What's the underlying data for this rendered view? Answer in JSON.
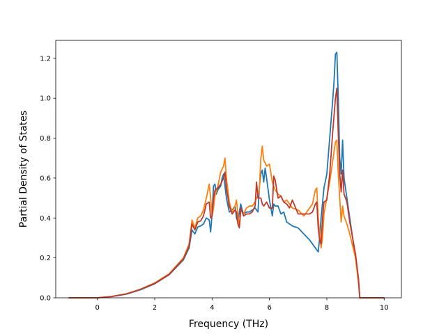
{
  "chart_data": {
    "type": "line",
    "xlabel": "Frequency (THz)",
    "ylabel": "Partial Density of States",
    "xlim": [
      -1.45,
      10.6
    ],
    "ylim": [
      0.0,
      1.29
    ],
    "x_ticks": [
      "0",
      "2",
      "4",
      "6",
      "8",
      "10"
    ],
    "x_tick_values": [
      0,
      2,
      4,
      6,
      8,
      10
    ],
    "y_ticks": [
      "0.0",
      "0.2",
      "0.4",
      "0.6",
      "0.8",
      "1.0",
      "1.2"
    ],
    "y_tick_values": [
      0.0,
      0.2,
      0.4,
      0.6,
      0.8,
      1.0,
      1.2
    ],
    "grid": false,
    "series": [
      {
        "color": "#1f77b4",
        "points": [
          [
            -1.0,
            0.0
          ],
          [
            0.0,
            0.0
          ],
          [
            0.5,
            0.006
          ],
          [
            1.0,
            0.018
          ],
          [
            1.5,
            0.04
          ],
          [
            2.0,
            0.07
          ],
          [
            2.5,
            0.115
          ],
          [
            3.0,
            0.19
          ],
          [
            3.2,
            0.25
          ],
          [
            3.3,
            0.34
          ],
          [
            3.4,
            0.32
          ],
          [
            3.5,
            0.355
          ],
          [
            3.6,
            0.36
          ],
          [
            3.7,
            0.37
          ],
          [
            3.8,
            0.4
          ],
          [
            3.9,
            0.39
          ],
          [
            3.95,
            0.33
          ],
          [
            4.0,
            0.42
          ],
          [
            4.05,
            0.56
          ],
          [
            4.1,
            0.57
          ],
          [
            4.15,
            0.52
          ],
          [
            4.2,
            0.54
          ],
          [
            4.3,
            0.56
          ],
          [
            4.35,
            0.6
          ],
          [
            4.4,
            0.62
          ],
          [
            4.45,
            0.56
          ],
          [
            4.5,
            0.5
          ],
          [
            4.6,
            0.43
          ],
          [
            4.7,
            0.44
          ],
          [
            4.8,
            0.46
          ],
          [
            4.85,
            0.4
          ],
          [
            4.9,
            0.38
          ],
          [
            4.95,
            0.43
          ],
          [
            5.0,
            0.47
          ],
          [
            5.05,
            0.44
          ],
          [
            5.1,
            0.42
          ],
          [
            5.2,
            0.43
          ],
          [
            5.3,
            0.43
          ],
          [
            5.4,
            0.44
          ],
          [
            5.5,
            0.45
          ],
          [
            5.55,
            0.44
          ],
          [
            5.6,
            0.43
          ],
          [
            5.65,
            0.56
          ],
          [
            5.7,
            0.62
          ],
          [
            5.75,
            0.64
          ],
          [
            5.8,
            0.58
          ],
          [
            5.85,
            0.65
          ],
          [
            5.9,
            0.6
          ],
          [
            6.0,
            0.49
          ],
          [
            6.1,
            0.41
          ],
          [
            6.15,
            0.47
          ],
          [
            6.2,
            0.46
          ],
          [
            6.3,
            0.46
          ],
          [
            6.4,
            0.42
          ],
          [
            6.5,
            0.43
          ],
          [
            6.6,
            0.38
          ],
          [
            6.7,
            0.37
          ],
          [
            6.8,
            0.36
          ],
          [
            7.0,
            0.35
          ],
          [
            7.2,
            0.32
          ],
          [
            7.4,
            0.29
          ],
          [
            7.6,
            0.25
          ],
          [
            7.7,
            0.23
          ],
          [
            7.75,
            0.3
          ],
          [
            7.8,
            0.4
          ],
          [
            7.9,
            0.55
          ],
          [
            8.0,
            0.62
          ],
          [
            8.1,
            0.8
          ],
          [
            8.2,
            0.98
          ],
          [
            8.25,
            1.08
          ],
          [
            8.3,
            1.22
          ],
          [
            8.35,
            1.23
          ],
          [
            8.4,
            1.0
          ],
          [
            8.45,
            0.7
          ],
          [
            8.5,
            0.62
          ],
          [
            8.55,
            0.79
          ],
          [
            8.6,
            0.6
          ],
          [
            8.7,
            0.5
          ],
          [
            8.8,
            0.4
          ],
          [
            9.0,
            0.2
          ],
          [
            9.1,
            0.1
          ],
          [
            9.15,
            0.0
          ],
          [
            10.0,
            0.0
          ]
        ]
      },
      {
        "color": "#ff7f0e",
        "points": [
          [
            -1.0,
            0.0
          ],
          [
            0.0,
            0.0
          ],
          [
            0.5,
            0.007
          ],
          [
            1.0,
            0.02
          ],
          [
            1.5,
            0.043
          ],
          [
            2.0,
            0.075
          ],
          [
            2.5,
            0.12
          ],
          [
            3.0,
            0.2
          ],
          [
            3.2,
            0.27
          ],
          [
            3.3,
            0.39
          ],
          [
            3.4,
            0.35
          ],
          [
            3.5,
            0.4
          ],
          [
            3.6,
            0.41
          ],
          [
            3.7,
            0.44
          ],
          [
            3.8,
            0.5
          ],
          [
            3.9,
            0.57
          ],
          [
            3.95,
            0.5
          ],
          [
            4.0,
            0.41
          ],
          [
            4.05,
            0.45
          ],
          [
            4.1,
            0.51
          ],
          [
            4.2,
            0.56
          ],
          [
            4.3,
            0.63
          ],
          [
            4.4,
            0.66
          ],
          [
            4.45,
            0.7
          ],
          [
            4.5,
            0.6
          ],
          [
            4.6,
            0.48
          ],
          [
            4.7,
            0.43
          ],
          [
            4.8,
            0.46
          ],
          [
            4.85,
            0.49
          ],
          [
            4.9,
            0.42
          ],
          [
            4.95,
            0.35
          ],
          [
            5.0,
            0.44
          ],
          [
            5.1,
            0.42
          ],
          [
            5.2,
            0.45
          ],
          [
            5.3,
            0.46
          ],
          [
            5.4,
            0.46
          ],
          [
            5.5,
            0.48
          ],
          [
            5.55,
            0.5
          ],
          [
            5.6,
            0.51
          ],
          [
            5.65,
            0.55
          ],
          [
            5.7,
            0.7
          ],
          [
            5.75,
            0.76
          ],
          [
            5.8,
            0.69
          ],
          [
            5.9,
            0.66
          ],
          [
            6.0,
            0.67
          ],
          [
            6.1,
            0.58
          ],
          [
            6.2,
            0.54
          ],
          [
            6.3,
            0.52
          ],
          [
            6.4,
            0.51
          ],
          [
            6.5,
            0.48
          ],
          [
            6.6,
            0.49
          ],
          [
            6.7,
            0.47
          ],
          [
            6.8,
            0.45
          ],
          [
            7.0,
            0.44
          ],
          [
            7.2,
            0.41
          ],
          [
            7.4,
            0.45
          ],
          [
            7.5,
            0.47
          ],
          [
            7.6,
            0.54
          ],
          [
            7.65,
            0.55
          ],
          [
            7.7,
            0.4
          ],
          [
            7.75,
            0.32
          ],
          [
            7.8,
            0.25
          ],
          [
            7.85,
            0.3
          ],
          [
            7.9,
            0.42
          ],
          [
            8.0,
            0.5
          ],
          [
            8.1,
            0.58
          ],
          [
            8.2,
            0.68
          ],
          [
            8.3,
            0.78
          ],
          [
            8.35,
            0.79
          ],
          [
            8.4,
            0.62
          ],
          [
            8.45,
            0.5
          ],
          [
            8.5,
            0.38
          ],
          [
            8.55,
            0.46
          ],
          [
            8.6,
            0.41
          ],
          [
            8.7,
            0.37
          ],
          [
            8.8,
            0.32
          ],
          [
            9.0,
            0.2
          ],
          [
            9.1,
            0.08
          ],
          [
            9.15,
            0.0
          ],
          [
            10.0,
            0.0
          ]
        ]
      },
      {
        "color": "#c0392b",
        "points": [
          [
            -1.0,
            0.0
          ],
          [
            0.0,
            0.0
          ],
          [
            0.5,
            0.0065
          ],
          [
            1.0,
            0.019
          ],
          [
            1.5,
            0.042
          ],
          [
            2.0,
            0.072
          ],
          [
            2.5,
            0.117
          ],
          [
            3.0,
            0.195
          ],
          [
            3.2,
            0.26
          ],
          [
            3.3,
            0.37
          ],
          [
            3.4,
            0.34
          ],
          [
            3.5,
            0.38
          ],
          [
            3.6,
            0.385
          ],
          [
            3.7,
            0.41
          ],
          [
            3.8,
            0.47
          ],
          [
            3.9,
            0.48
          ],
          [
            3.95,
            0.4
          ],
          [
            4.0,
            0.41
          ],
          [
            4.05,
            0.5
          ],
          [
            4.1,
            0.54
          ],
          [
            4.2,
            0.55
          ],
          [
            4.3,
            0.57
          ],
          [
            4.4,
            0.6
          ],
          [
            4.45,
            0.63
          ],
          [
            4.5,
            0.55
          ],
          [
            4.6,
            0.46
          ],
          [
            4.7,
            0.42
          ],
          [
            4.8,
            0.44
          ],
          [
            4.85,
            0.43
          ],
          [
            4.9,
            0.37
          ],
          [
            4.95,
            0.35
          ],
          [
            5.0,
            0.45
          ],
          [
            5.1,
            0.41
          ],
          [
            5.2,
            0.42
          ],
          [
            5.3,
            0.42
          ],
          [
            5.4,
            0.43
          ],
          [
            5.5,
            0.46
          ],
          [
            5.55,
            0.58
          ],
          [
            5.6,
            0.5
          ],
          [
            5.7,
            0.5
          ],
          [
            5.75,
            0.47
          ],
          [
            5.8,
            0.46
          ],
          [
            5.9,
            0.48
          ],
          [
            6.0,
            0.45
          ],
          [
            6.1,
            0.45
          ],
          [
            6.15,
            0.61
          ],
          [
            6.2,
            0.59
          ],
          [
            6.3,
            0.5
          ],
          [
            6.4,
            0.51
          ],
          [
            6.5,
            0.48
          ],
          [
            6.6,
            0.47
          ],
          [
            6.7,
            0.45
          ],
          [
            6.8,
            0.49
          ],
          [
            7.0,
            0.42
          ],
          [
            7.2,
            0.42
          ],
          [
            7.4,
            0.42
          ],
          [
            7.5,
            0.43
          ],
          [
            7.6,
            0.47
          ],
          [
            7.65,
            0.48
          ],
          [
            7.7,
            0.35
          ],
          [
            7.75,
            0.29
          ],
          [
            7.8,
            0.27
          ],
          [
            7.85,
            0.4
          ],
          [
            7.9,
            0.48
          ],
          [
            8.0,
            0.49
          ],
          [
            8.1,
            0.62
          ],
          [
            8.2,
            0.82
          ],
          [
            8.3,
            1.0
          ],
          [
            8.35,
            1.05
          ],
          [
            8.4,
            0.82
          ],
          [
            8.45,
            0.62
          ],
          [
            8.5,
            0.53
          ],
          [
            8.55,
            0.64
          ],
          [
            8.6,
            0.52
          ],
          [
            8.7,
            0.48
          ],
          [
            8.8,
            0.38
          ],
          [
            9.0,
            0.22
          ],
          [
            9.1,
            0.1
          ],
          [
            9.15,
            0.0
          ],
          [
            10.0,
            0.0
          ]
        ]
      }
    ]
  }
}
